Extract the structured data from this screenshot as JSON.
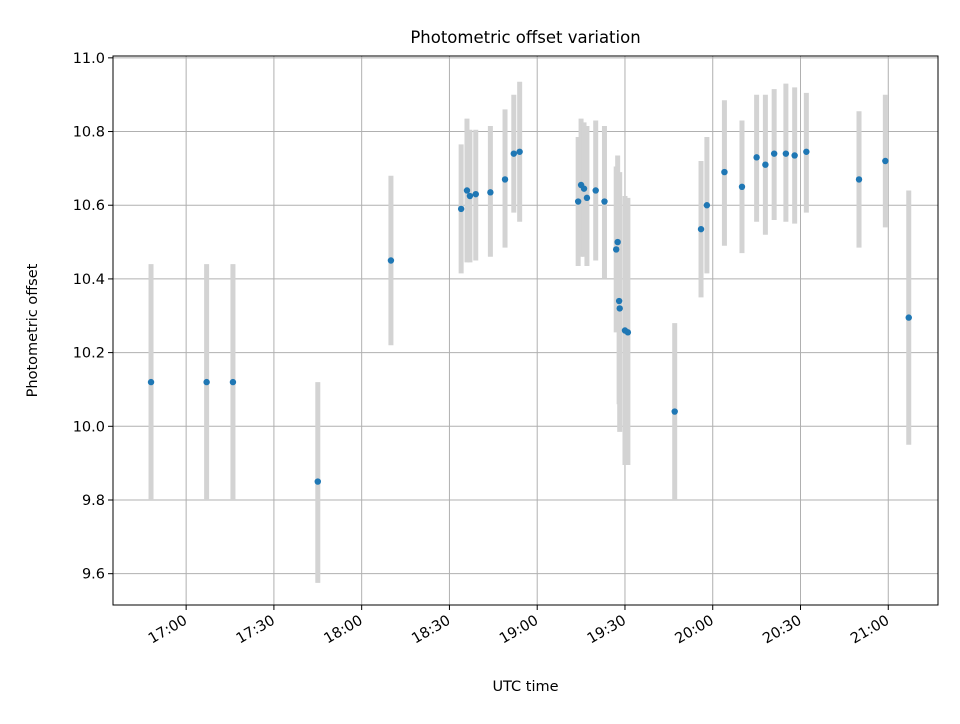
{
  "chart_data": {
    "type": "scatter",
    "title": "Photometric offset variation",
    "xlabel": "UTC time",
    "ylabel": "Photometric offset",
    "grid": true,
    "x_axis_type": "time",
    "xlim": [
      "16:35",
      "21:17"
    ],
    "ylim": [
      9.515,
      11.005
    ],
    "x_ticks": [
      "17:00",
      "17:30",
      "18:00",
      "18:30",
      "19:00",
      "19:30",
      "20:00",
      "20:30",
      "21:00"
    ],
    "y_ticks": [
      9.6,
      9.8,
      10.0,
      10.2,
      10.4,
      10.6,
      10.8,
      11.0
    ],
    "y_tick_labels": [
      "9.6",
      "9.8",
      "10.0",
      "10.2",
      "10.4",
      "10.6",
      "10.8",
      "11.0"
    ],
    "series": [
      {
        "point_color": "#1f77b4",
        "errorbar_color": "#d3d3d3",
        "points": [
          {
            "x": "16:48",
            "y": 10.12,
            "ylow": 9.8,
            "yhigh": 10.44
          },
          {
            "x": "17:07",
            "y": 10.12,
            "ylow": 9.8,
            "yhigh": 10.44
          },
          {
            "x": "17:16",
            "y": 10.12,
            "ylow": 9.8,
            "yhigh": 10.44
          },
          {
            "x": "17:45",
            "y": 9.85,
            "ylow": 9.575,
            "yhigh": 10.12
          },
          {
            "x": "18:10",
            "y": 10.45,
            "ylow": 10.22,
            "yhigh": 10.68
          },
          {
            "x": "18:34",
            "y": 10.59,
            "ylow": 10.415,
            "yhigh": 10.765
          },
          {
            "x": "18:36",
            "y": 10.64,
            "ylow": 10.445,
            "yhigh": 10.835
          },
          {
            "x": "18:37",
            "y": 10.625,
            "ylow": 10.445,
            "yhigh": 10.805
          },
          {
            "x": "18:39",
            "y": 10.63,
            "ylow": 10.45,
            "yhigh": 10.805
          },
          {
            "x": "18:44",
            "y": 10.635,
            "ylow": 10.46,
            "yhigh": 10.815
          },
          {
            "x": "18:49",
            "y": 10.67,
            "ylow": 10.485,
            "yhigh": 10.86
          },
          {
            "x": "18:52",
            "y": 10.74,
            "ylow": 10.58,
            "yhigh": 10.9
          },
          {
            "x": "18:54",
            "y": 10.745,
            "ylow": 10.555,
            "yhigh": 10.935
          },
          {
            "x": "19:14",
            "y": 10.61,
            "ylow": 10.435,
            "yhigh": 10.785
          },
          {
            "x": "19:15",
            "y": 10.655,
            "ylow": 10.46,
            "yhigh": 10.835
          },
          {
            "x": "19:16",
            "y": 10.645,
            "ylow": 10.46,
            "yhigh": 10.825
          },
          {
            "x": "19:17",
            "y": 10.62,
            "ylow": 10.435,
            "yhigh": 10.815
          },
          {
            "x": "19:20",
            "y": 10.64,
            "ylow": 10.45,
            "yhigh": 10.83
          },
          {
            "x": "19:23",
            "y": 10.61,
            "ylow": 10.4,
            "yhigh": 10.815
          },
          {
            "x": "19:27",
            "y": 10.48,
            "ylow": 10.255,
            "yhigh": 10.705
          },
          {
            "x": "19:27.5",
            "y": 10.5,
            "ylow": 10.265,
            "yhigh": 10.735
          },
          {
            "x": "19:28",
            "y": 10.34,
            "ylow": 10.06,
            "yhigh": 10.62
          },
          {
            "x": "19:28.2",
            "y": 10.32,
            "ylow": 9.985,
            "yhigh": 10.69
          },
          {
            "x": "19:30",
            "y": 10.26,
            "ylow": 9.895,
            "yhigh": 10.625
          },
          {
            "x": "19:31",
            "y": 10.255,
            "ylow": 9.895,
            "yhigh": 10.62
          },
          {
            "x": "19:47",
            "y": 10.04,
            "ylow": 9.8,
            "yhigh": 10.28
          },
          {
            "x": "19:56",
            "y": 10.535,
            "ylow": 10.35,
            "yhigh": 10.72
          },
          {
            "x": "19:58",
            "y": 10.6,
            "ylow": 10.415,
            "yhigh": 10.785
          },
          {
            "x": "20:04",
            "y": 10.69,
            "ylow": 10.49,
            "yhigh": 10.885
          },
          {
            "x": "20:10",
            "y": 10.65,
            "ylow": 10.47,
            "yhigh": 10.83
          },
          {
            "x": "20:15",
            "y": 10.73,
            "ylow": 10.555,
            "yhigh": 10.9
          },
          {
            "x": "20:18",
            "y": 10.71,
            "ylow": 10.52,
            "yhigh": 10.9
          },
          {
            "x": "20:21",
            "y": 10.74,
            "ylow": 10.56,
            "yhigh": 10.915
          },
          {
            "x": "20:25",
            "y": 10.74,
            "ylow": 10.555,
            "yhigh": 10.93
          },
          {
            "x": "20:28",
            "y": 10.735,
            "ylow": 10.55,
            "yhigh": 10.92
          },
          {
            "x": "20:32",
            "y": 10.745,
            "ylow": 10.58,
            "yhigh": 10.905
          },
          {
            "x": "20:50",
            "y": 10.67,
            "ylow": 10.485,
            "yhigh": 10.855
          },
          {
            "x": "20:59",
            "y": 10.72,
            "ylow": 10.54,
            "yhigh": 10.9
          },
          {
            "x": "21:07",
            "y": 10.295,
            "ylow": 9.95,
            "yhigh": 10.64
          }
        ]
      }
    ]
  }
}
